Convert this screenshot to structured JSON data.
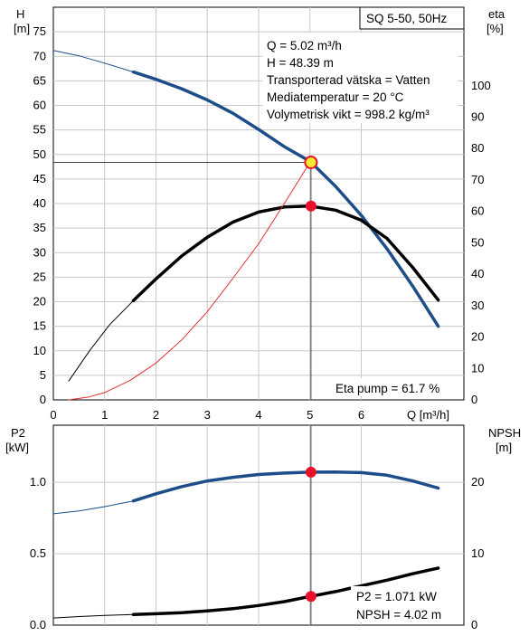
{
  "colors": {
    "head": "#1d4e89",
    "eta": "#000000",
    "system": "#e03030",
    "point": "#e8102a",
    "opPoint": "#f2ea2e",
    "grid": "#c8c8c8"
  },
  "info": {
    "title": "SQ 5-50, 50Hz",
    "lines": [
      "Q = 5.02 m³/h",
      "H = 48.39 m",
      "Transporterad vätska = Vatten",
      "Mediatemperatur = 20 °C",
      "Volymetrisk vikt = 998.2 kg/m³"
    ],
    "eta_pump": "Eta pump = 61.7 %"
  },
  "bottom_info": [
    "P2 = 1.071 kW",
    "NPSH = 4.02 m"
  ],
  "labels": {
    "top_left": "H",
    "top_left_unit": "[m]",
    "top_right": "eta",
    "top_right_unit": "[%]",
    "x_unit": "Q [m³/h]",
    "bottom_left": "P2",
    "bottom_left_unit": "[kW]",
    "bottom_right": "NPSH",
    "bottom_right_unit": "[m]"
  },
  "chart_data": [
    {
      "type": "line",
      "xlim": [
        0,
        8
      ],
      "x_ticks": [
        0,
        1,
        2,
        3,
        4,
        5,
        6
      ],
      "ylim": [
        0,
        80
      ],
      "y_ticks": [
        0,
        5,
        10,
        15,
        20,
        25,
        30,
        35,
        40,
        45,
        50,
        55,
        60,
        65,
        70,
        75
      ],
      "y2lim": [
        0,
        125
      ],
      "y2_ticks": [
        0,
        10,
        20,
        30,
        40,
        50,
        60,
        70,
        80,
        90,
        100
      ],
      "series": [
        {
          "key": "head_thin",
          "axis": "left",
          "x": [
            0,
            0.5,
            1.0,
            1.56
          ],
          "y": [
            71.2,
            70.1,
            68.6,
            66.8
          ]
        },
        {
          "key": "head",
          "axis": "left",
          "x": [
            1.56,
            2.0,
            2.5,
            3.0,
            3.5,
            4.0,
            4.5,
            5.0,
            5.5,
            6.0,
            6.5,
            7.0,
            7.5
          ],
          "y": [
            66.8,
            65.3,
            63.4,
            61.1,
            58.4,
            55.1,
            51.6,
            48.6,
            43.5,
            37.6,
            30.8,
            23.2,
            15.0
          ]
        },
        {
          "key": "eta_thin",
          "axis": "right",
          "x": [
            0.3,
            0.7,
            1.1,
            1.56
          ],
          "y": [
            6.0,
            15.5,
            24.0,
            31.6
          ]
        },
        {
          "key": "eta",
          "axis": "right",
          "x": [
            1.56,
            2.0,
            2.5,
            3.0,
            3.5,
            4.0,
            4.5,
            5.0,
            5.5,
            6.0,
            6.5,
            7.0,
            7.5
          ],
          "y": [
            31.6,
            38.5,
            45.8,
            51.8,
            56.6,
            59.8,
            61.4,
            61.7,
            60.4,
            57.2,
            51.4,
            42.2,
            31.8
          ]
        },
        {
          "key": "system",
          "axis": "left",
          "x": [
            0.3,
            0.7,
            1.0,
            1.5,
            2.0,
            2.5,
            3.0,
            3.5,
            4.0,
            4.5,
            5.0
          ],
          "y": [
            0,
            0.6,
            1.5,
            4.0,
            7.5,
            12.2,
            18.0,
            24.8,
            31.8,
            40.0,
            48.4
          ]
        }
      ],
      "operating_point": {
        "x": 5.02,
        "y": 48.39
      },
      "eta_point": {
        "x": 5.02,
        "y": 61.7
      }
    },
    {
      "type": "line",
      "xlim": [
        0,
        8
      ],
      "ylim": [
        0,
        1.4
      ],
      "y_ticks": [
        0.0,
        0.5,
        1.0
      ],
      "y2lim": [
        0,
        28
      ],
      "y2_ticks": [
        0,
        10,
        20
      ],
      "series": [
        {
          "key": "p2_thin",
          "axis": "left",
          "x": [
            0,
            0.5,
            1.0,
            1.56
          ],
          "y": [
            0.78,
            0.8,
            0.83,
            0.87
          ]
        },
        {
          "key": "p2",
          "axis": "left",
          "x": [
            1.56,
            2.0,
            2.5,
            3.0,
            3.5,
            4.0,
            4.5,
            5.0,
            5.5,
            6.0,
            6.5,
            7.0,
            7.5
          ],
          "y": [
            0.87,
            0.92,
            0.97,
            1.01,
            1.035,
            1.055,
            1.065,
            1.071,
            1.072,
            1.068,
            1.05,
            1.01,
            0.96
          ]
        },
        {
          "key": "npsh_thin",
          "axis": "right",
          "x": [
            0,
            0.5,
            1.0,
            1.56
          ],
          "y": [
            1.0,
            1.2,
            1.35,
            1.5
          ]
        },
        {
          "key": "npsh",
          "axis": "right",
          "x": [
            1.56,
            2.0,
            2.5,
            3.0,
            3.5,
            4.0,
            4.5,
            5.0,
            5.5,
            6.0,
            6.5,
            7.0,
            7.5
          ],
          "y": [
            1.5,
            1.6,
            1.75,
            2.0,
            2.3,
            2.75,
            3.3,
            4.02,
            4.7,
            5.5,
            6.3,
            7.2,
            8.0
          ]
        }
      ],
      "p2_point": {
        "x": 5.02,
        "y": 1.071
      },
      "npsh_point": {
        "x": 5.02,
        "y": 4.02
      }
    }
  ]
}
